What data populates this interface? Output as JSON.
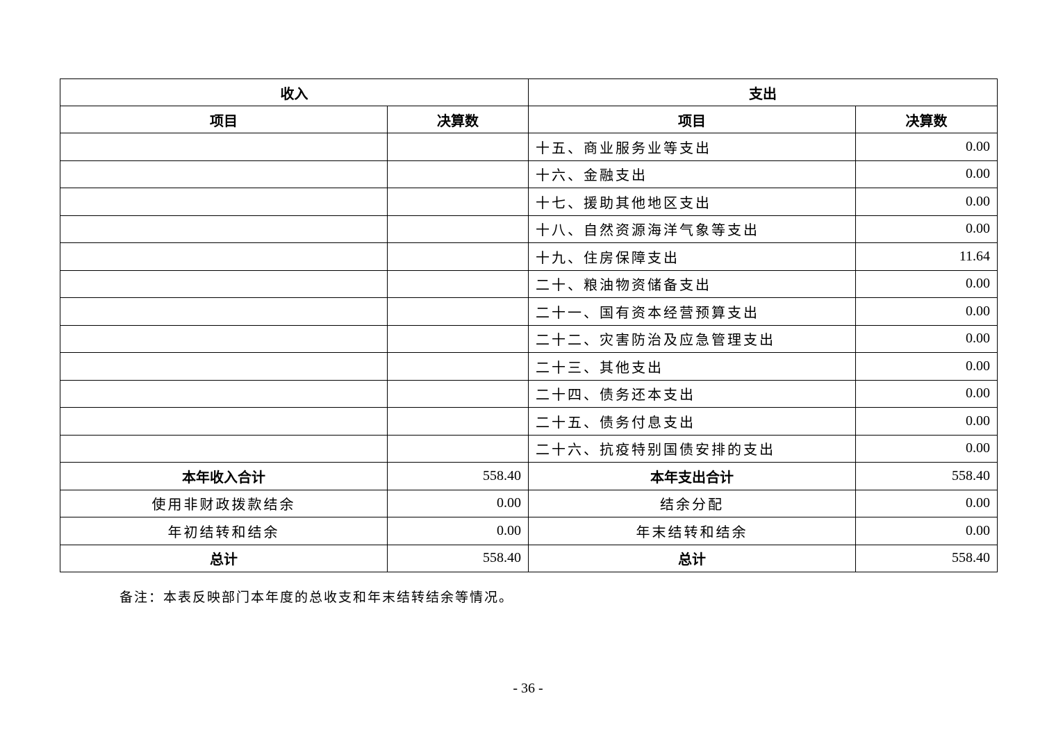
{
  "table": {
    "income_header": "收入",
    "expense_header": "支出",
    "col_item": "项目",
    "col_amount": "决算数",
    "rows": [
      {
        "in_item": "",
        "in_amount": "",
        "out_item": "十五、商业服务业等支出",
        "out_amount": "0.00"
      },
      {
        "in_item": "",
        "in_amount": "",
        "out_item": "十六、金融支出",
        "out_amount": "0.00"
      },
      {
        "in_item": "",
        "in_amount": "",
        "out_item": "十七、援助其他地区支出",
        "out_amount": "0.00"
      },
      {
        "in_item": "",
        "in_amount": "",
        "out_item": "十八、自然资源海洋气象等支出",
        "out_amount": "0.00"
      },
      {
        "in_item": "",
        "in_amount": "",
        "out_item": "十九、住房保障支出",
        "out_amount": "11.64"
      },
      {
        "in_item": "",
        "in_amount": "",
        "out_item": "二十、粮油物资储备支出",
        "out_amount": "0.00"
      },
      {
        "in_item": "",
        "in_amount": "",
        "out_item": "二十一、国有资本经营预算支出",
        "out_amount": "0.00"
      },
      {
        "in_item": "",
        "in_amount": "",
        "out_item": "二十二、灾害防治及应急管理支出",
        "out_amount": "0.00"
      },
      {
        "in_item": "",
        "in_amount": "",
        "out_item": "二十三、其他支出",
        "out_amount": "0.00"
      },
      {
        "in_item": "",
        "in_amount": "",
        "out_item": "二十四、债务还本支出",
        "out_amount": "0.00"
      },
      {
        "in_item": "",
        "in_amount": "",
        "out_item": "二十五、债务付息支出",
        "out_amount": "0.00"
      },
      {
        "in_item": "",
        "in_amount": "",
        "out_item": "二十六、抗疫特别国债安排的支出",
        "out_amount": "0.00"
      }
    ],
    "summary": [
      {
        "in_item": "本年收入合计",
        "in_amount": "558.40",
        "out_item": "本年支出合计",
        "out_amount": "558.40",
        "bold": true
      },
      {
        "in_item": "使用非财政拨款结余",
        "in_amount": "0.00",
        "out_item": "结余分配",
        "out_amount": "0.00",
        "bold": false
      },
      {
        "in_item": "年初结转和结余",
        "in_amount": "0.00",
        "out_item": "年末结转和结余",
        "out_amount": "0.00",
        "bold": false
      },
      {
        "in_item": "总计",
        "in_amount": "558.40",
        "out_item": "总计",
        "out_amount": "558.40",
        "bold": true
      }
    ]
  },
  "note": "备注：本表反映部门本年度的总收支和年末结转结余等情况。",
  "page_number": "- 36 -"
}
